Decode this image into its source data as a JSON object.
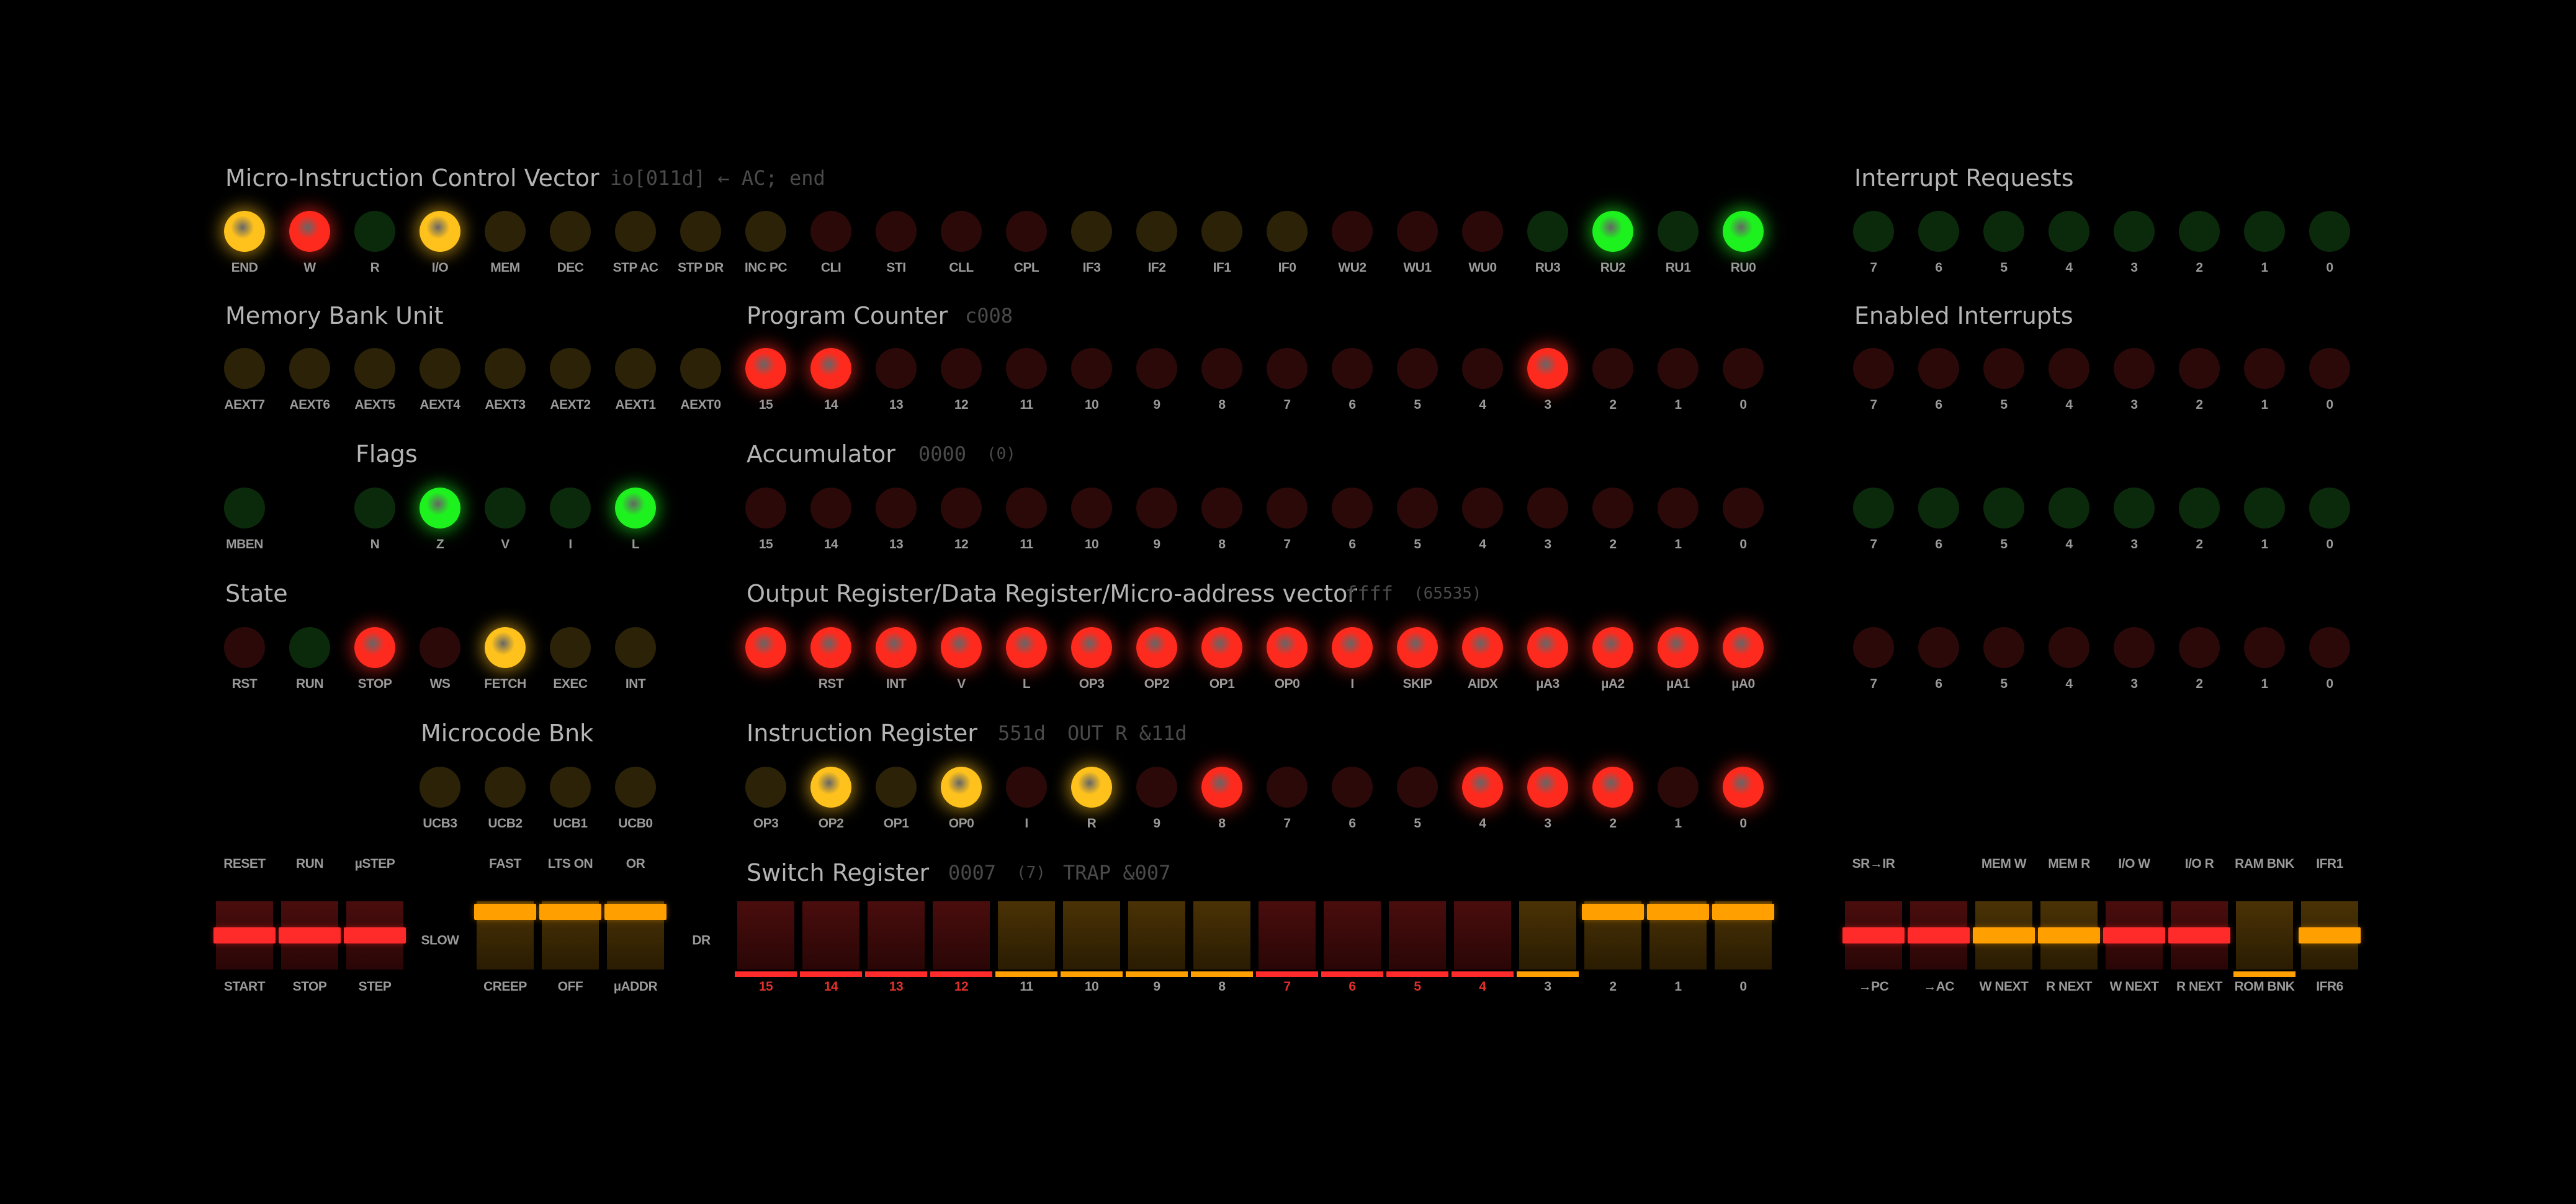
{
  "colors": {
    "red_on": "#ff2a1e",
    "red_off": "#2c0909",
    "yellow_on": "#ffc21c",
    "yellow_off": "#2b2208",
    "green_on": "#1ef21e",
    "green_off": "#0b2a0b",
    "switch_red": "#ff2a2a",
    "switch_amber": "#ffa000"
  },
  "titles": {
    "mcv": "Micro-Instruction Control Vector",
    "mcv_sub": "io[011d] ← AC; end",
    "irq": "Interrupt Requests",
    "ei": "Enabled Interrupts",
    "mbu": "Memory Bank Unit",
    "pc": "Program Counter",
    "pc_sub": "c008",
    "flags": "Flags",
    "acc": "Accumulator",
    "acc_sub": "0000",
    "acc_sub2": "(0)",
    "state": "State",
    "or": "Output Register/Data Register/Micro-address vector",
    "or_sub": "ffff",
    "or_sub2": "(65535)",
    "ucb": "Microcode Bnk",
    "ir": "Instruction Register",
    "ir_sub": "551d",
    "ir_sub2": "OUT R &11d",
    "sr": "Switch Register",
    "sr_sub": "0007",
    "sr_sub2": "(7)",
    "sr_sub3": "TRAP &007"
  },
  "rows": {
    "mcv": {
      "labels": [
        "END",
        "W",
        "R",
        "I/O",
        "MEM",
        "DEC",
        "STP AC",
        "STP DR",
        "INC PC",
        "CLI",
        "STI",
        "CLL",
        "CPL",
        "IF3",
        "IF2",
        "IF1",
        "IF0",
        "WU2",
        "WU1",
        "WU0",
        "RU3",
        "RU2",
        "RU1",
        "RU0"
      ],
      "colors": [
        "y",
        "r",
        "g",
        "y",
        "y",
        "y",
        "y",
        "y",
        "y",
        "r",
        "r",
        "r",
        "r",
        "y",
        "y",
        "y",
        "y",
        "r",
        "r",
        "r",
        "g",
        "g",
        "g",
        "g"
      ],
      "on": [
        true,
        true,
        false,
        true,
        false,
        false,
        false,
        false,
        false,
        false,
        false,
        false,
        false,
        false,
        false,
        false,
        false,
        false,
        false,
        false,
        false,
        true,
        false,
        true
      ]
    },
    "irq": {
      "labels": [
        "7",
        "6",
        "5",
        "4",
        "3",
        "2",
        "1",
        "0"
      ],
      "colors": [
        "g",
        "g",
        "g",
        "g",
        "g",
        "g",
        "g",
        "g"
      ],
      "on": [
        false,
        false,
        false,
        false,
        false,
        false,
        false,
        false
      ]
    },
    "mbu": {
      "labels": [
        "AEXT7",
        "AEXT6",
        "AEXT5",
        "AEXT4",
        "AEXT3",
        "AEXT2",
        "AEXT1",
        "AEXT0"
      ],
      "colors": [
        "y",
        "y",
        "y",
        "y",
        "y",
        "y",
        "y",
        "y"
      ],
      "on": [
        false,
        false,
        false,
        false,
        false,
        false,
        false,
        false
      ]
    },
    "pc": {
      "labels": [
        "15",
        "14",
        "13",
        "12",
        "11",
        "10",
        "9",
        "8",
        "7",
        "6",
        "5",
        "4",
        "3",
        "2",
        "1",
        "0"
      ],
      "colors": [
        "r",
        "r",
        "r",
        "r",
        "r",
        "r",
        "r",
        "r",
        "r",
        "r",
        "r",
        "r",
        "r",
        "r",
        "r",
        "r"
      ],
      "on": [
        true,
        true,
        false,
        false,
        false,
        false,
        false,
        false,
        false,
        false,
        false,
        false,
        true,
        false,
        false,
        false
      ]
    },
    "ei": {
      "labels": [
        "7",
        "6",
        "5",
        "4",
        "3",
        "2",
        "1",
        "0"
      ],
      "colors": [
        "r",
        "r",
        "r",
        "r",
        "r",
        "r",
        "r",
        "r"
      ],
      "on": [
        false,
        false,
        false,
        false,
        false,
        false,
        false,
        false
      ]
    },
    "flags": {
      "labels": [
        "MBEN",
        "N",
        "Z",
        "V",
        "I",
        "L"
      ],
      "colors": [
        "g",
        "g",
        "g",
        "g",
        "g",
        "g"
      ],
      "on": [
        false,
        false,
        true,
        false,
        false,
        true
      ]
    },
    "acc": {
      "labels": [
        "15",
        "14",
        "13",
        "12",
        "11",
        "10",
        "9",
        "8",
        "7",
        "6",
        "5",
        "4",
        "3",
        "2",
        "1",
        "0"
      ],
      "colors": [
        "r",
        "r",
        "r",
        "r",
        "r",
        "r",
        "r",
        "r",
        "r",
        "r",
        "r",
        "r",
        "r",
        "r",
        "r",
        "r"
      ],
      "on": [
        false,
        false,
        false,
        false,
        false,
        false,
        false,
        false,
        false,
        false,
        false,
        false,
        false,
        false,
        false,
        false
      ]
    },
    "right3": {
      "labels": [
        "7",
        "6",
        "5",
        "4",
        "3",
        "2",
        "1",
        "0"
      ],
      "colors": [
        "g",
        "g",
        "g",
        "g",
        "g",
        "g",
        "g",
        "g"
      ],
      "on": [
        false,
        false,
        false,
        false,
        false,
        false,
        false,
        false
      ]
    },
    "state": {
      "labels": [
        "RST",
        "RUN",
        "STOP",
        "WS",
        "FETCH",
        "EXEC",
        "INT"
      ],
      "colors": [
        "r",
        "g",
        "r",
        "r",
        "y",
        "y",
        "y"
      ],
      "on": [
        false,
        false,
        true,
        false,
        true,
        false,
        false
      ]
    },
    "or": {
      "labels": [
        "",
        "RST",
        "INT",
        "V",
        "L",
        "OP3",
        "OP2",
        "OP1",
        "OP0",
        "I",
        "SKIP",
        "AIDX",
        "µA3",
        "µA2",
        "µA1",
        "µA0"
      ],
      "colors": [
        "r",
        "r",
        "r",
        "r",
        "r",
        "r",
        "r",
        "r",
        "r",
        "r",
        "r",
        "r",
        "r",
        "r",
        "r",
        "r"
      ],
      "on": [
        true,
        true,
        true,
        true,
        true,
        true,
        true,
        true,
        true,
        true,
        true,
        true,
        true,
        true,
        true,
        true
      ]
    },
    "right4": {
      "labels": [
        "7",
        "6",
        "5",
        "4",
        "3",
        "2",
        "1",
        "0"
      ],
      "colors": [
        "r",
        "r",
        "r",
        "r",
        "r",
        "r",
        "r",
        "r"
      ],
      "on": [
        false,
        false,
        false,
        false,
        false,
        false,
        false,
        false
      ]
    },
    "ucb": {
      "labels": [
        "UCB3",
        "UCB2",
        "UCB1",
        "UCB0"
      ],
      "colors": [
        "y",
        "y",
        "y",
        "y"
      ],
      "on": [
        false,
        false,
        false,
        false
      ]
    },
    "ir": {
      "labels": [
        "OP3",
        "OP2",
        "OP1",
        "OP0",
        "I",
        "R",
        "9",
        "8",
        "7",
        "6",
        "5",
        "4",
        "3",
        "2",
        "1",
        "0"
      ],
      "colors": [
        "y",
        "y",
        "y",
        "y",
        "r",
        "y",
        "r",
        "r",
        "r",
        "r",
        "r",
        "r",
        "r",
        "r",
        "r",
        "r"
      ],
      "on": [
        false,
        true,
        false,
        true,
        false,
        true,
        false,
        true,
        false,
        false,
        false,
        true,
        true,
        true,
        false,
        true
      ]
    }
  },
  "switches": {
    "ctrl": {
      "top": [
        "RESET",
        "RUN",
        "µSTEP"
      ],
      "bottom": [
        "START",
        "STOP",
        "STEP"
      ],
      "colors": [
        "r",
        "r",
        "r"
      ],
      "pos": [
        "mid",
        "mid",
        "mid"
      ]
    },
    "speed": {
      "top": [
        "FAST",
        "LTS ON",
        "OR"
      ],
      "bottom": [
        "CREEP",
        "OFF",
        "µADDR"
      ],
      "colors": [
        "a",
        "a",
        "a"
      ],
      "pos": [
        "up",
        "up",
        "up"
      ],
      "left_label": "SLOW",
      "right_label": "DR"
    },
    "sr": {
      "bottom": [
        "15",
        "14",
        "13",
        "12",
        "11",
        "10",
        "9",
        "8",
        "7",
        "6",
        "5",
        "4",
        "3",
        "2",
        "1",
        "0"
      ],
      "colors": [
        "r",
        "r",
        "r",
        "r",
        "a",
        "a",
        "a",
        "a",
        "r",
        "r",
        "r",
        "r",
        "a",
        "a",
        "a",
        "a"
      ],
      "pos": [
        "down",
        "down",
        "down",
        "down",
        "down",
        "down",
        "down",
        "down",
        "down",
        "down",
        "down",
        "down",
        "down",
        "up",
        "up",
        "up"
      ]
    },
    "right": {
      "top": [
        "SR→IR",
        "",
        "MEM W",
        "MEM R",
        "I/O W",
        "I/O R",
        "RAM BNK",
        "IFR1"
      ],
      "bottom": [
        "→PC",
        "→AC",
        "W NEXT",
        "R NEXT",
        "W NEXT",
        "R NEXT",
        "ROM BNK",
        "IFR6"
      ],
      "colors": [
        "r",
        "r",
        "a",
        "a",
        "r",
        "r",
        "a",
        "a"
      ],
      "pos": [
        "mid",
        "mid",
        "mid",
        "mid",
        "mid",
        "mid",
        "down",
        "mid"
      ]
    }
  }
}
